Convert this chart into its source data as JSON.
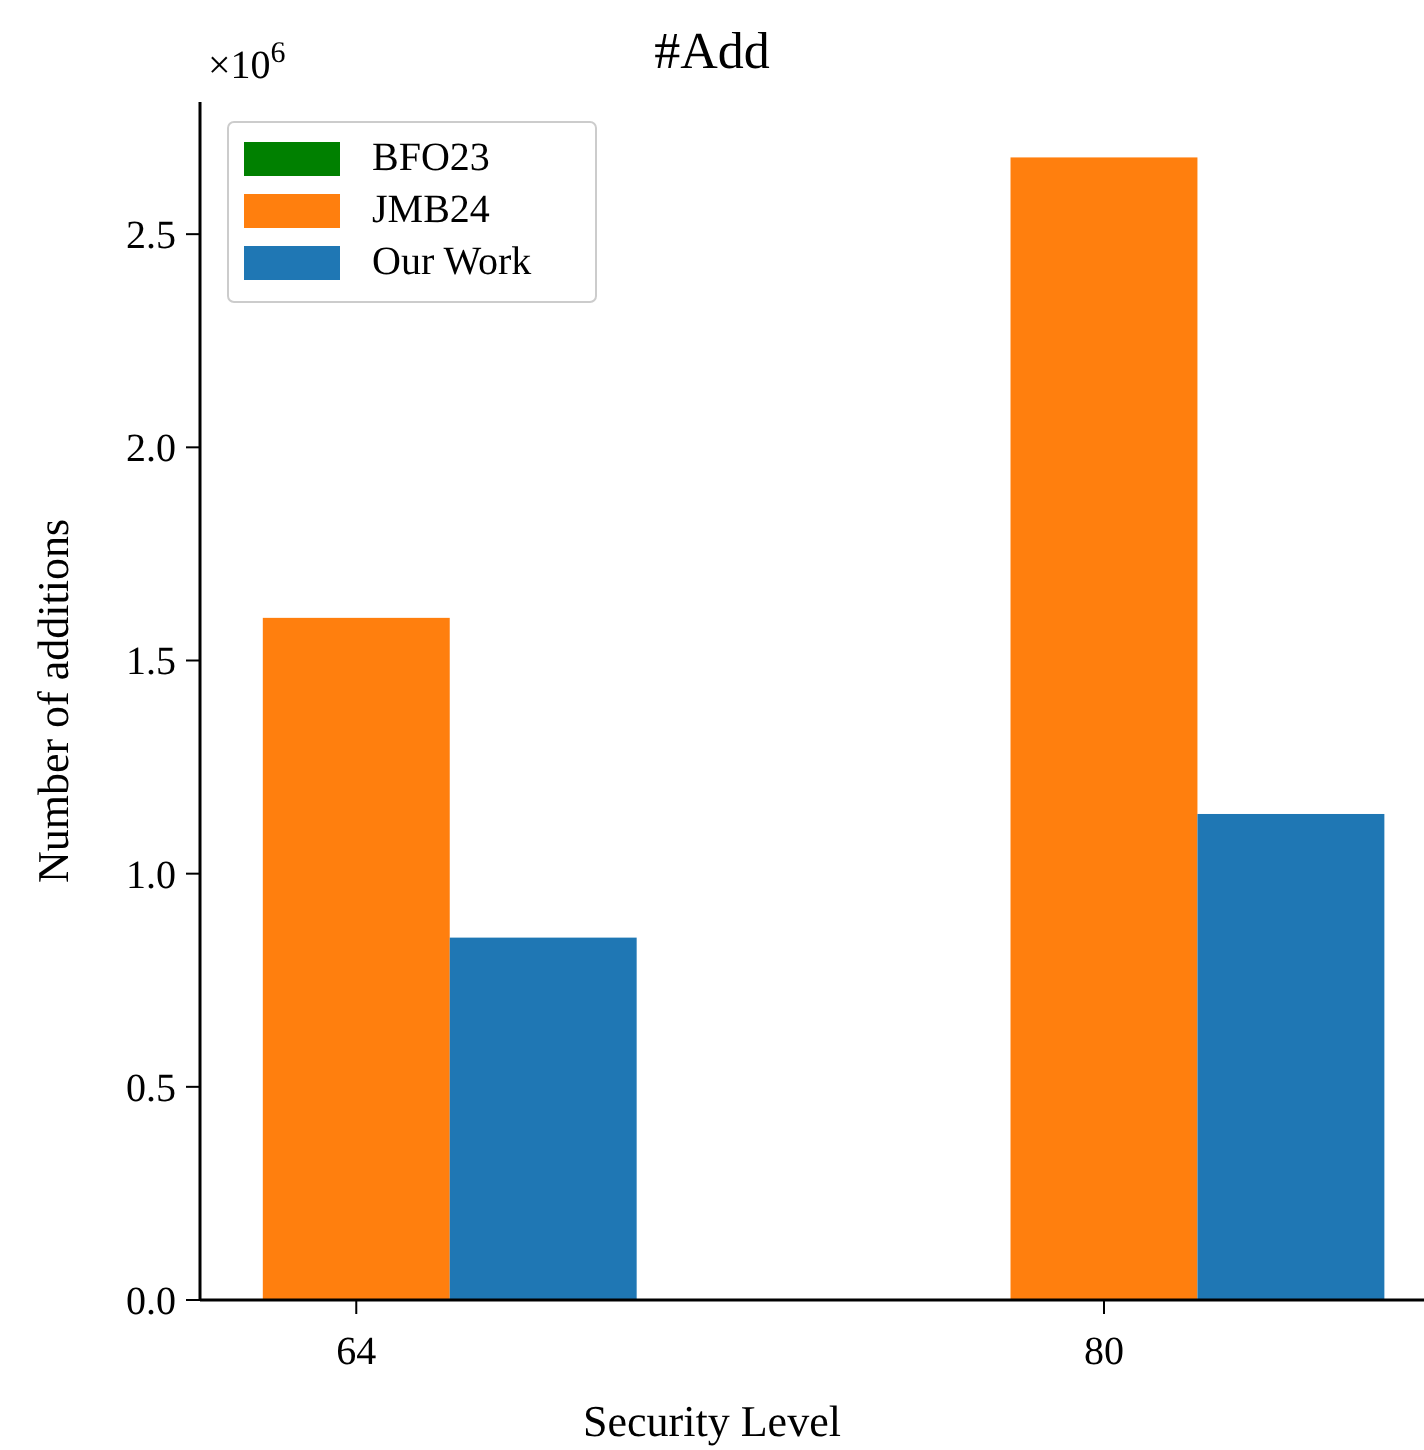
{
  "chart_data": {
    "type": "bar",
    "title": "#Add",
    "xlabel": "Security Level",
    "ylabel": "Number of additions",
    "categories": [
      "64",
      "80"
    ],
    "series": [
      {
        "name": "BFO23",
        "color": "#008000",
        "values": [
          null,
          null
        ]
      },
      {
        "name": "JMB24",
        "color": "#ff7f0e",
        "values": [
          1.6,
          2.68
        ]
      },
      {
        "name": "Our Work",
        "color": "#1f77b4",
        "values": [
          0.85,
          1.14
        ]
      }
    ],
    "ylim": [
      0,
      2.81
    ],
    "yticks": [
      {
        "value": 0,
        "label": "0.0"
      },
      0.5,
      {
        "value": 1,
        "label": "1.0"
      },
      1.5,
      {
        "value": 2,
        "label": "2.0"
      },
      2.5
    ],
    "annotations": [
      "×10$^{6}$"
    ],
    "legend": "top left",
    "grid": false
  }
}
